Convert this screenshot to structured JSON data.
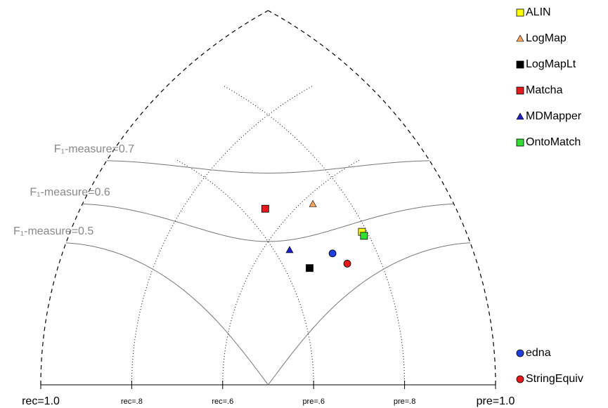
{
  "chart_data": {
    "type": "precision-recall-triangle",
    "recall_ticks": [
      {
        "value": 1.0,
        "label": "rec=1.0"
      },
      {
        "value": 0.8,
        "label": "rec=.8"
      },
      {
        "value": 0.6,
        "label": "rec=.6"
      }
    ],
    "precision_ticks": [
      {
        "value": 0.6,
        "label": "pre=.6"
      },
      {
        "value": 0.8,
        "label": "pre=.8"
      },
      {
        "value": 1.0,
        "label": "pre=1.0"
      }
    ],
    "f_measures": [
      {
        "value": 0.5,
        "label": "F₁-measure=0.5"
      },
      {
        "value": 0.6,
        "label": "F₁-measure=0.6"
      },
      {
        "value": 0.7,
        "label": "F₁-measure=0.7"
      }
    ],
    "series": [
      {
        "name": "ALIN",
        "color": "#ffff00",
        "marker": "square",
        "precision": 0.79,
        "recall": 0.46
      },
      {
        "name": "LogMap",
        "color": "#f4a460",
        "marker": "triangle",
        "precision": 0.73,
        "recall": 0.58
      },
      {
        "name": "LogMapLt",
        "color": "#000000",
        "marker": "square",
        "precision": 0.65,
        "recall": 0.49
      },
      {
        "name": "Matcha",
        "color": "#e41a1c",
        "marker": "square",
        "precision": 0.64,
        "recall": 0.65
      },
      {
        "name": "MDMapper",
        "color": "#1f1fbf",
        "marker": "triangle",
        "precision": 0.63,
        "recall": 0.55
      },
      {
        "name": "OntoMatch",
        "color": "#33dd33",
        "marker": "square",
        "precision": 0.79,
        "recall": 0.45
      }
    ],
    "baselines": [
      {
        "name": "edna",
        "color": "#1f3fdd",
        "marker": "circle",
        "precision": 0.71,
        "recall": 0.47
      },
      {
        "name": "StringEquiv",
        "color": "#e41a1c",
        "marker": "circle",
        "precision": 0.73,
        "recall": 0.43
      }
    ]
  }
}
